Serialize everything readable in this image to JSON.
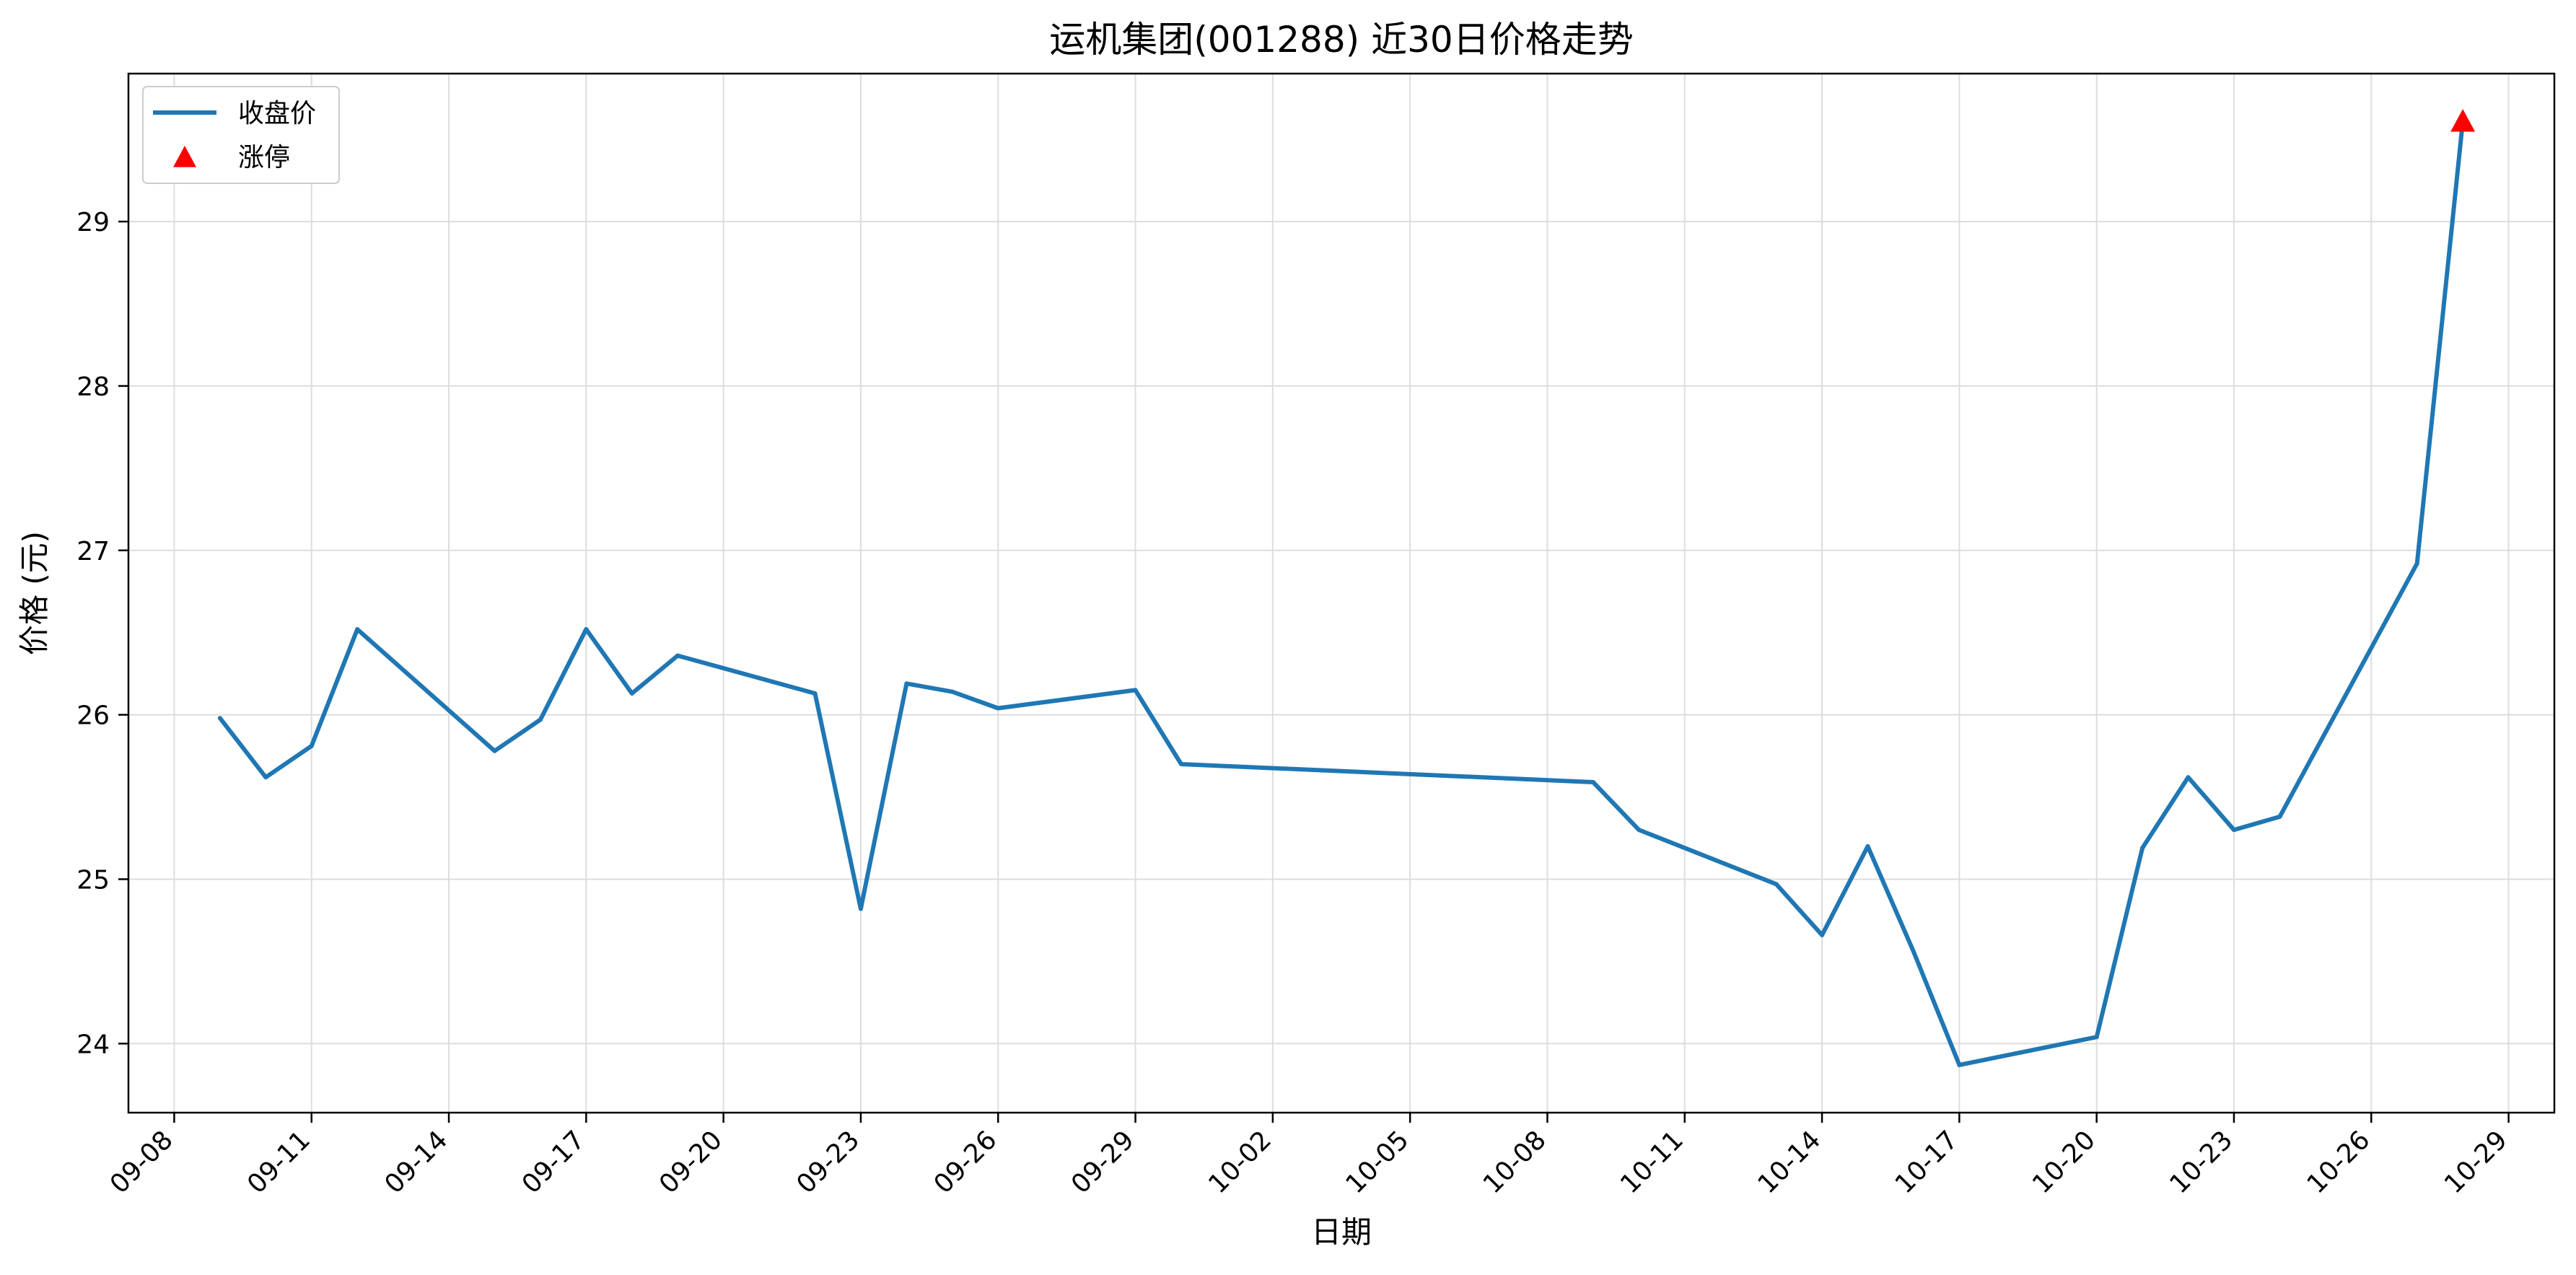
{
  "chart_data": {
    "type": "line",
    "title": "运机集团(001288) 近30日价格走势",
    "xlabel": "日期",
    "ylabel": "价格 (元)",
    "x_ticks": [
      "09-08",
      "09-11",
      "09-14",
      "09-17",
      "09-20",
      "09-23",
      "09-26",
      "09-29",
      "10-02",
      "10-05",
      "10-08",
      "10-11",
      "10-14",
      "10-17",
      "10-20",
      "10-23",
      "10-26",
      "10-29"
    ],
    "y_ticks": [
      24,
      25,
      26,
      27,
      28,
      29
    ],
    "xlim": [
      "09-07",
      "10-30"
    ],
    "ylim": [
      23.58,
      29.9
    ],
    "grid": true,
    "legend_position": "top-left",
    "series": [
      {
        "name": "收盘价",
        "color": "#1f77b4",
        "x": [
          "09-09",
          "09-10",
          "09-11",
          "09-12",
          "09-15",
          "09-16",
          "09-17",
          "09-18",
          "09-19",
          "09-22",
          "09-23",
          "09-24",
          "09-25",
          "09-26",
          "09-29",
          "09-30",
          "10-09",
          "10-10",
          "10-13",
          "10-14",
          "10-15",
          "10-16",
          "10-17",
          "10-20",
          "10-21",
          "10-22",
          "10-23",
          "10-24",
          "10-27",
          "10-28"
        ],
        "values": [
          25.98,
          25.62,
          25.81,
          26.52,
          25.78,
          25.97,
          26.52,
          26.13,
          26.36,
          26.13,
          24.82,
          26.19,
          26.14,
          26.04,
          26.15,
          25.7,
          25.59,
          25.3,
          24.97,
          24.66,
          25.2,
          24.56,
          23.87,
          24.04,
          25.19,
          25.62,
          25.3,
          25.38,
          26.92,
          29.61
        ]
      },
      {
        "name": "涨停",
        "type": "scatter",
        "marker": "triangle",
        "color": "#ff0000",
        "x": [
          "10-28"
        ],
        "values": [
          29.61
        ]
      }
    ]
  }
}
